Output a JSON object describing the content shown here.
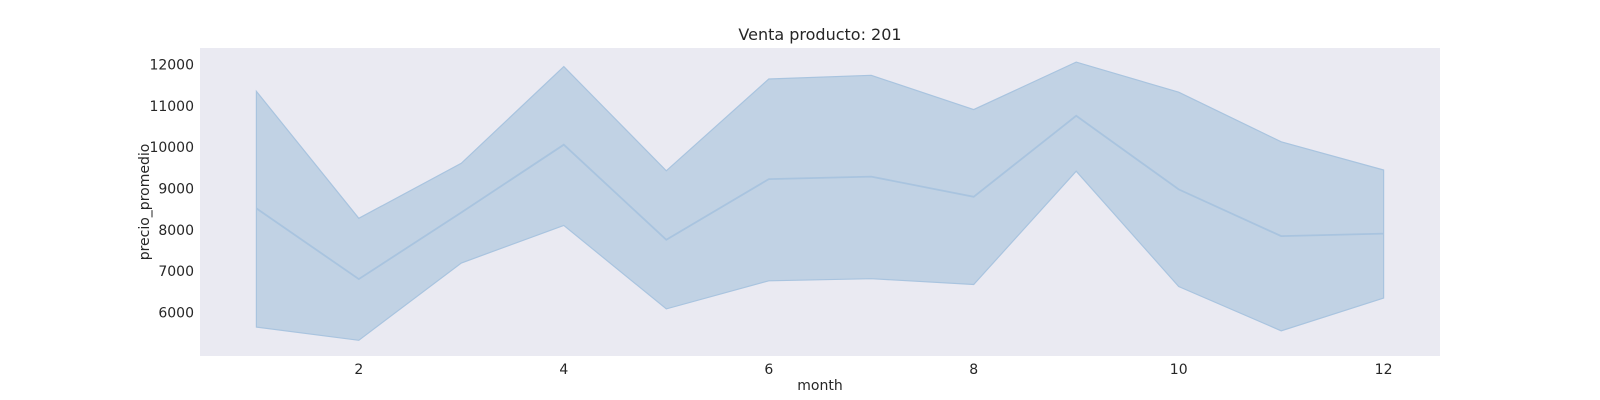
{
  "chart_data": {
    "type": "line",
    "title": "Venta producto: 201",
    "xlabel": "month",
    "ylabel": "precio_promedio",
    "x": [
      1,
      2,
      3,
      4,
      5,
      6,
      7,
      8,
      9,
      10,
      11,
      12
    ],
    "xlim": [
      0.45,
      12.55
    ],
    "ylim": [
      4950,
      12400
    ],
    "x_ticks": [
      2,
      4,
      6,
      8,
      10,
      12
    ],
    "y_ticks": [
      6000,
      7000,
      8000,
      9000,
      10000,
      11000,
      12000
    ],
    "grid": false,
    "series": [
      {
        "values": [
          8520,
          6810,
          8420,
          10060,
          7760,
          9230,
          9290,
          8800,
          10760,
          8980,
          7850,
          7910
        ],
        "lower": [
          5650,
          5330,
          7200,
          8110,
          6090,
          6770,
          6820,
          6680,
          9420,
          6630,
          5560,
          6350
        ],
        "upper": [
          11350,
          8280,
          9610,
          11950,
          9430,
          11650,
          11740,
          10910,
          12060,
          11330,
          10130,
          9450
        ]
      }
    ],
    "colors": {
      "plot_background": "#eaeaf2",
      "line": "#a9c4df",
      "band": "#c1d2e4",
      "band_edge": "#a9c4df"
    }
  }
}
